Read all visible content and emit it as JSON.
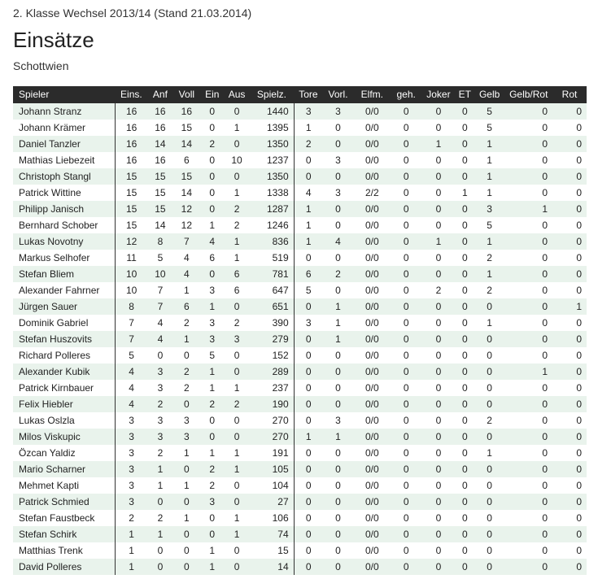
{
  "header": {
    "league": "2. Klasse Wechsel 2013/14 (Stand 21.03.2014)",
    "title": "Einsätze",
    "team": "Schottwien"
  },
  "columns": [
    "Spieler",
    "Eins.",
    "Anf",
    "Voll",
    "Ein",
    "Aus",
    "Spielz.",
    "Tore",
    "Vorl.",
    "Elfm.",
    "geh.",
    "Joker",
    "ET",
    "Gelb",
    "Gelb/Rot",
    "Rot"
  ],
  "rows": [
    [
      "Johann Stranz",
      "16",
      "16",
      "16",
      "0",
      "0",
      "1440",
      "3",
      "3",
      "0/0",
      "0",
      "0",
      "0",
      "5",
      "0",
      "0"
    ],
    [
      "Johann Krämer",
      "16",
      "16",
      "15",
      "0",
      "1",
      "1395",
      "1",
      "0",
      "0/0",
      "0",
      "0",
      "0",
      "5",
      "0",
      "0"
    ],
    [
      "Daniel Tanzler",
      "16",
      "14",
      "14",
      "2",
      "0",
      "1350",
      "2",
      "0",
      "0/0",
      "0",
      "1",
      "0",
      "1",
      "0",
      "0"
    ],
    [
      "Mathias Liebezeit",
      "16",
      "16",
      "6",
      "0",
      "10",
      "1237",
      "0",
      "3",
      "0/0",
      "0",
      "0",
      "0",
      "1",
      "0",
      "0"
    ],
    [
      "Christoph Stangl",
      "15",
      "15",
      "15",
      "0",
      "0",
      "1350",
      "0",
      "0",
      "0/0",
      "0",
      "0",
      "0",
      "1",
      "0",
      "0"
    ],
    [
      "Patrick Wittine",
      "15",
      "15",
      "14",
      "0",
      "1",
      "1338",
      "4",
      "3",
      "2/2",
      "0",
      "0",
      "1",
      "1",
      "0",
      "0"
    ],
    [
      "Philipp Janisch",
      "15",
      "15",
      "12",
      "0",
      "2",
      "1287",
      "1",
      "0",
      "0/0",
      "0",
      "0",
      "0",
      "3",
      "1",
      "0"
    ],
    [
      "Bernhard Schober",
      "15",
      "14",
      "12",
      "1",
      "2",
      "1246",
      "1",
      "0",
      "0/0",
      "0",
      "0",
      "0",
      "5",
      "0",
      "0"
    ],
    [
      "Lukas Novotny",
      "12",
      "8",
      "7",
      "4",
      "1",
      "836",
      "1",
      "4",
      "0/0",
      "0",
      "1",
      "0",
      "1",
      "0",
      "0"
    ],
    [
      "Markus Selhofer",
      "11",
      "5",
      "4",
      "6",
      "1",
      "519",
      "0",
      "0",
      "0/0",
      "0",
      "0",
      "0",
      "2",
      "0",
      "0"
    ],
    [
      "Stefan Bliem",
      "10",
      "10",
      "4",
      "0",
      "6",
      "781",
      "6",
      "2",
      "0/0",
      "0",
      "0",
      "0",
      "1",
      "0",
      "0"
    ],
    [
      "Alexander Fahrner",
      "10",
      "7",
      "1",
      "3",
      "6",
      "647",
      "5",
      "0",
      "0/0",
      "0",
      "2",
      "0",
      "2",
      "0",
      "0"
    ],
    [
      "Jürgen Sauer",
      "8",
      "7",
      "6",
      "1",
      "0",
      "651",
      "0",
      "1",
      "0/0",
      "0",
      "0",
      "0",
      "0",
      "0",
      "1"
    ],
    [
      "Dominik Gabriel",
      "7",
      "4",
      "2",
      "3",
      "2",
      "390",
      "3",
      "1",
      "0/0",
      "0",
      "0",
      "0",
      "1",
      "0",
      "0"
    ],
    [
      "Stefan Huszovits",
      "7",
      "4",
      "1",
      "3",
      "3",
      "279",
      "0",
      "1",
      "0/0",
      "0",
      "0",
      "0",
      "0",
      "0",
      "0"
    ],
    [
      "Richard Polleres",
      "5",
      "0",
      "0",
      "5",
      "0",
      "152",
      "0",
      "0",
      "0/0",
      "0",
      "0",
      "0",
      "0",
      "0",
      "0"
    ],
    [
      "Alexander Kubik",
      "4",
      "3",
      "2",
      "1",
      "0",
      "289",
      "0",
      "0",
      "0/0",
      "0",
      "0",
      "0",
      "0",
      "1",
      "0"
    ],
    [
      "Patrick Kirnbauer",
      "4",
      "3",
      "2",
      "1",
      "1",
      "237",
      "0",
      "0",
      "0/0",
      "0",
      "0",
      "0",
      "0",
      "0",
      "0"
    ],
    [
      "Felix Hiebler",
      "4",
      "2",
      "0",
      "2",
      "2",
      "190",
      "0",
      "0",
      "0/0",
      "0",
      "0",
      "0",
      "0",
      "0",
      "0"
    ],
    [
      "Lukas Oslzla",
      "3",
      "3",
      "3",
      "0",
      "0",
      "270",
      "0",
      "3",
      "0/0",
      "0",
      "0",
      "0",
      "2",
      "0",
      "0"
    ],
    [
      "Milos Viskupic",
      "3",
      "3",
      "3",
      "0",
      "0",
      "270",
      "1",
      "1",
      "0/0",
      "0",
      "0",
      "0",
      "0",
      "0",
      "0"
    ],
    [
      "Özcan Yaldiz",
      "3",
      "2",
      "1",
      "1",
      "1",
      "191",
      "0",
      "0",
      "0/0",
      "0",
      "0",
      "0",
      "1",
      "0",
      "0"
    ],
    [
      "Mario Scharner",
      "3",
      "1",
      "0",
      "2",
      "1",
      "105",
      "0",
      "0",
      "0/0",
      "0",
      "0",
      "0",
      "0",
      "0",
      "0"
    ],
    [
      "Mehmet Kapti",
      "3",
      "1",
      "1",
      "2",
      "0",
      "104",
      "0",
      "0",
      "0/0",
      "0",
      "0",
      "0",
      "0",
      "0",
      "0"
    ],
    [
      "Patrick Schmied",
      "3",
      "0",
      "0",
      "3",
      "0",
      "27",
      "0",
      "0",
      "0/0",
      "0",
      "0",
      "0",
      "0",
      "0",
      "0"
    ],
    [
      "Stefan Faustbeck",
      "2",
      "2",
      "1",
      "0",
      "1",
      "106",
      "0",
      "0",
      "0/0",
      "0",
      "0",
      "0",
      "0",
      "0",
      "0"
    ],
    [
      "Stefan Schirk",
      "1",
      "1",
      "0",
      "0",
      "1",
      "74",
      "0",
      "0",
      "0/0",
      "0",
      "0",
      "0",
      "0",
      "0",
      "0"
    ],
    [
      "Matthias Trenk",
      "1",
      "0",
      "0",
      "1",
      "0",
      "15",
      "0",
      "0",
      "0/0",
      "0",
      "0",
      "0",
      "0",
      "0",
      "0"
    ],
    [
      "David Polleres",
      "1",
      "0",
      "0",
      "1",
      "0",
      "14",
      "0",
      "0",
      "0/0",
      "0",
      "0",
      "0",
      "0",
      "0",
      "0"
    ]
  ]
}
